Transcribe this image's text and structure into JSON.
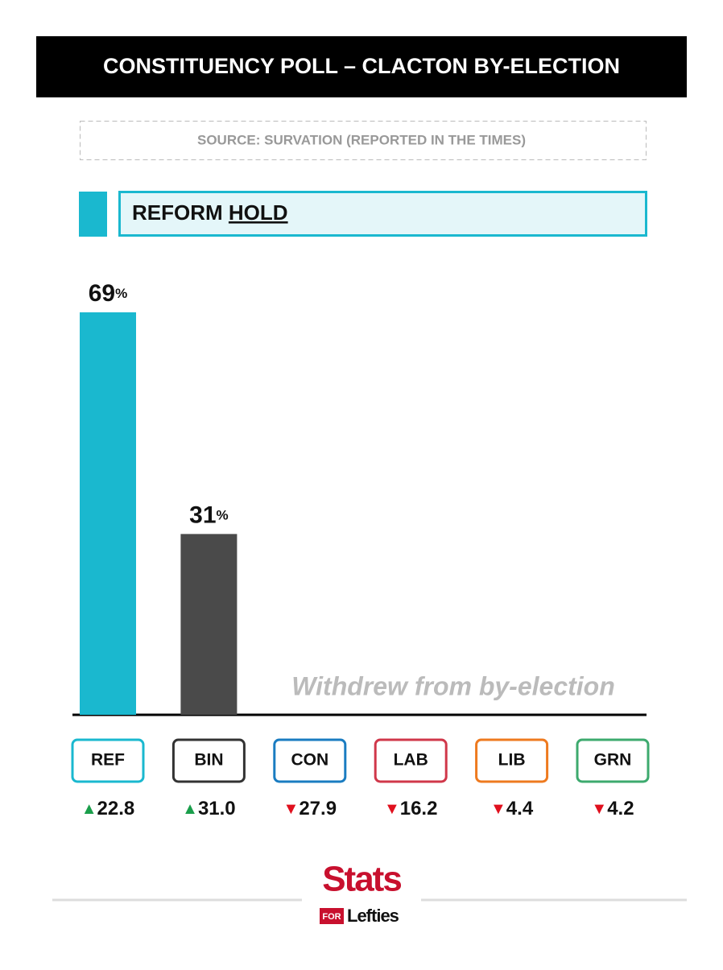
{
  "chart_data": {
    "type": "bar",
    "title": "CONSTITUENCY POLL – CLACTON BY-ELECTION",
    "subtitle": "SOURCE: SURVATION (REPORTED IN THE TIMES)",
    "headline": {
      "party": "REFORM",
      "result": "HOLD"
    },
    "categories": [
      "REF",
      "BIN",
      "CON",
      "LAB",
      "LIB",
      "GRN"
    ],
    "category_colors": [
      "#1ab8cf",
      "#333333",
      "#1a7cc1",
      "#d0374a",
      "#ee7a1f",
      "#3daa6e"
    ],
    "values": [
      69,
      31,
      null,
      null,
      null,
      null
    ],
    "value_labels": [
      "69%",
      "31%",
      null,
      null,
      null,
      null
    ],
    "bar_colors": [
      "#1ab8cf",
      "#4a4a4a",
      null,
      null,
      null,
      null
    ],
    "changes": [
      22.8,
      31.0,
      -27.9,
      -16.2,
      -4.4,
      -4.2
    ],
    "change_labels": [
      "▲22.8",
      "▲31.0",
      "▼27.9",
      "▼16.2",
      "▼4.4",
      "▼4.2"
    ],
    "annotation": "Withdrew from by-election"
  },
  "logo": {
    "top": "Stats",
    "for": "FOR",
    "bottom": "Lefties"
  }
}
